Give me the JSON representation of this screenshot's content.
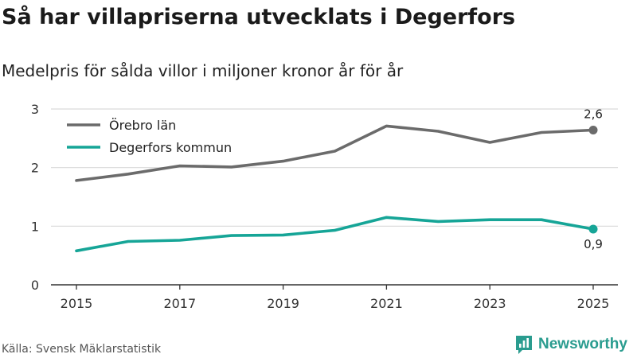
{
  "title": "Så har villapriserna utvecklats i Degerfors",
  "subtitle": "Medelpris för sålda villor i miljoner kronor år för år",
  "source": "Källa: Svensk Mäklarstatistik",
  "brand": {
    "name": "Newsworthy",
    "icon": "newsworthy-logo-icon",
    "color": "#2a9c8f"
  },
  "chart_data": {
    "type": "line",
    "x": [
      2015,
      2016,
      2017,
      2018,
      2019,
      2020,
      2021,
      2022,
      2023,
      2024,
      2025
    ],
    "x_ticks": [
      "2015",
      "2017",
      "2019",
      "2021",
      "2023",
      "2025"
    ],
    "y_ticks": [
      "0",
      "1",
      "2",
      "3"
    ],
    "ylim": [
      0,
      3
    ],
    "grid": true,
    "legend_position": "top-left",
    "series": [
      {
        "name": "Örebro län",
        "color": "#6b6b6b",
        "values": [
          1.78,
          1.89,
          2.03,
          2.01,
          2.11,
          2.28,
          2.71,
          2.62,
          2.43,
          2.6,
          2.64
        ],
        "end_label": "2,6"
      },
      {
        "name": "Degerfors kommun",
        "color": "#16a597",
        "values": [
          0.58,
          0.74,
          0.76,
          0.84,
          0.85,
          0.93,
          1.15,
          1.08,
          1.11,
          1.11,
          0.95
        ],
        "end_label": "0,9"
      }
    ]
  }
}
